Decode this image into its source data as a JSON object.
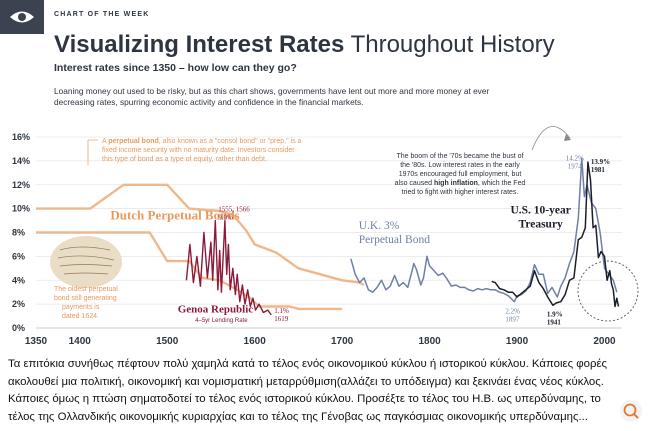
{
  "header": {
    "kicker": "CHART OF THE WEEK",
    "title_bold": "Visualizing Interest Rates",
    "title_light": "Throughout History",
    "subtitle": "Interest rates since 1350 – how low can they go?",
    "description": "Loaning money out used to be risky, but as this chart shows, governments have lent out more and more money at ever decreasing rates, spurring economic activity and confidence in the financial markets."
  },
  "annotations": {
    "perpetual_note_lead": "A ",
    "perpetual_note_bold": "perpetual bond",
    "perpetual_note_1": ", also known as a \"consol bond\" or \"prep,\" is a",
    "perpetual_note_2": "fixed income security with no maturity date. Investors consider",
    "perpetual_note_3": "this type of bond as a type of equity, rather than debt.",
    "oldest_1": "The oldest perpetual",
    "oldest_2": "bond still generating",
    "oldest_3": "payments is",
    "oldest_4": "dated 1624.",
    "boom_1": "The boom of the '70s became the bust of",
    "boom_2": "the '80s. Low interest rates in the early",
    "boom_3": "1970s encouraged full employment, but",
    "boom_4_a": "also caused ",
    "boom_4_b": "high inflation",
    "boom_4_c": ", which the Fed",
    "boom_5": "tried to fight with higher interest rates."
  },
  "caption": "Τα επιτόκια συνήθως πέφτουν πολύ χαμηλά κατά το τέλος ενός οικονομικού κύκλου ή  ιστορικού κύκλου. Κάποιες φορές ακολουθεί μια πολιτική, οικονομική και νομισματική μεταρρύθμιση(αλλάζει το υπόδειγμα) και ξεκινάει ένας νέος κύκλος. Κάποιες όμως η πτώση σηματοδοτεί το τέλος ενός ιστορικού κύκλου. Προσέξτε το τέλος του Η.Β. ως υπερδύναμης, το τέλος της Ολλανδικής οικονομικής κυριαρχίας  και το τέλος της Γένοβας ως παγκόσμιας οικονομικής υπερδύναμης...",
  "colors": {
    "dark": "#2d3540",
    "genoa": "#8b1a3a",
    "dutch": "#f0b78a",
    "dutch_text": "#e89a5e",
    "uk": "#6e7fa8",
    "us": "#1a1f28",
    "grid": "#e6e6e6"
  },
  "chart_data": {
    "type": "line",
    "title": "Visualizing Interest Rates Throughout History",
    "xlabel": "",
    "ylabel": "",
    "xlim": [
      1350,
      2020
    ],
    "ylim": [
      0,
      16
    ],
    "x_ticks": [
      1350,
      1400,
      1500,
      1600,
      1700,
      1800,
      1900,
      2000
    ],
    "y_ticks": [
      0,
      2,
      4,
      6,
      8,
      10,
      12,
      14,
      16
    ],
    "y_tick_labels": [
      "0%",
      "2%",
      "4%",
      "6%",
      "8%",
      "10%",
      "12%",
      "14%",
      "16%"
    ],
    "grid": true,
    "series": [
      {
        "name": "Dutch Perpetual Bonds",
        "label": "Dutch Perpetual Bonds",
        "points": [
          [
            1350,
            10.0
          ],
          [
            1360,
            10.0
          ],
          [
            1412,
            10.0
          ],
          [
            1450,
            12.0
          ],
          [
            1500,
            12.0
          ],
          [
            1525,
            10.0
          ],
          [
            1560,
            9.8
          ],
          [
            1575,
            9.5
          ],
          [
            1590,
            8.2
          ],
          [
            1600,
            7.0
          ],
          [
            1625,
            6.3
          ],
          [
            1650,
            5.0
          ],
          [
            1675,
            4.5
          ],
          [
            1700,
            4.0
          ],
          [
            1720,
            3.8
          ],
          [
            1725,
            3.6
          ]
        ]
      },
      {
        "name": "Dutch Perpetual Bonds (lower)",
        "label": "",
        "points": [
          [
            1350,
            8.0
          ],
          [
            1440,
            8.0
          ],
          [
            1480,
            8.0
          ],
          [
            1500,
            5.6
          ],
          [
            1525,
            5.6
          ],
          [
            1540,
            4.2
          ],
          [
            1560,
            4.0
          ],
          [
            1580,
            3.2
          ],
          [
            1595,
            2.5
          ],
          [
            1605,
            1.8
          ],
          [
            1640,
            1.8
          ],
          [
            1650,
            1.6
          ],
          [
            1700,
            1.6
          ]
        ]
      },
      {
        "name": "Genoa Republic",
        "label": "Genoa Republic",
        "sublabel": "4–5yr Lending Rate",
        "points": [
          [
            1522,
            4.0
          ],
          [
            1526,
            7.0
          ],
          [
            1530,
            3.8
          ],
          [
            1534,
            6.0
          ],
          [
            1538,
            3.5
          ],
          [
            1542,
            8.0
          ],
          [
            1546,
            4.2
          ],
          [
            1550,
            7.2
          ],
          [
            1552,
            4.0
          ],
          [
            1555,
            9.0
          ],
          [
            1558,
            3.2
          ],
          [
            1560,
            6.5
          ],
          [
            1562,
            3.0
          ],
          [
            1566,
            9.0
          ],
          [
            1568,
            4.5
          ],
          [
            1570,
            7.0
          ],
          [
            1572,
            3.2
          ],
          [
            1575,
            5.0
          ],
          [
            1578,
            2.8
          ],
          [
            1580,
            4.5
          ],
          [
            1583,
            2.2
          ],
          [
            1586,
            3.6
          ],
          [
            1589,
            2.0
          ],
          [
            1592,
            3.2
          ],
          [
            1595,
            1.8
          ],
          [
            1598,
            2.5
          ],
          [
            1601,
            1.5
          ],
          [
            1605,
            2.0
          ],
          [
            1610,
            1.3
          ],
          [
            1615,
            1.5
          ],
          [
            1619,
            1.1
          ]
        ]
      },
      {
        "name": "U.K. 3% Perpetual Bond",
        "label": "U.K. 3% Perpetual Bond",
        "points": [
          [
            1710,
            5.8
          ],
          [
            1715,
            4.5
          ],
          [
            1720,
            3.8
          ],
          [
            1725,
            4.2
          ],
          [
            1730,
            3.2
          ],
          [
            1735,
            3.0
          ],
          [
            1740,
            3.4
          ],
          [
            1745,
            4.0
          ],
          [
            1750,
            3.2
          ],
          [
            1755,
            3.5
          ],
          [
            1760,
            4.4
          ],
          [
            1765,
            3.5
          ],
          [
            1770,
            3.8
          ],
          [
            1775,
            3.4
          ],
          [
            1780,
            4.8
          ],
          [
            1782,
            5.4
          ],
          [
            1785,
            4.9
          ],
          [
            1790,
            3.6
          ],
          [
            1793,
            4.2
          ],
          [
            1797,
            6.0
          ],
          [
            1800,
            5.2
          ],
          [
            1805,
            4.8
          ],
          [
            1810,
            4.4
          ],
          [
            1815,
            4.6
          ],
          [
            1820,
            4.1
          ],
          [
            1825,
            3.5
          ],
          [
            1830,
            3.6
          ],
          [
            1835,
            3.4
          ],
          [
            1840,
            3.4
          ],
          [
            1845,
            3.2
          ],
          [
            1850,
            3.1
          ],
          [
            1855,
            3.3
          ],
          [
            1860,
            3.2
          ],
          [
            1865,
            3.3
          ],
          [
            1870,
            3.2
          ],
          [
            1875,
            3.2
          ],
          [
            1880,
            3.0
          ],
          [
            1885,
            2.9
          ],
          [
            1890,
            2.7
          ],
          [
            1897,
            2.2
          ],
          [
            1900,
            2.7
          ],
          [
            1905,
            2.8
          ],
          [
            1910,
            3.1
          ],
          [
            1915,
            3.8
          ],
          [
            1920,
            5.3
          ],
          [
            1925,
            4.5
          ],
          [
            1930,
            4.5
          ],
          [
            1935,
            2.9
          ],
          [
            1940,
            3.4
          ],
          [
            1946,
            2.6
          ],
          [
            1950,
            3.5
          ],
          [
            1955,
            4.2
          ],
          [
            1960,
            5.4
          ],
          [
            1965,
            6.4
          ],
          [
            1970,
            9.2
          ],
          [
            1974,
            14.2
          ],
          [
            1977,
            11.0
          ],
          [
            1980,
            12.0
          ],
          [
            1985,
            10.5
          ],
          [
            1990,
            10.0
          ],
          [
            1995,
            8.0
          ],
          [
            2000,
            5.0
          ],
          [
            2005,
            4.5
          ],
          [
            2010,
            4.0
          ],
          [
            2014,
            3.0
          ]
        ]
      },
      {
        "name": "U.S. 10-year Treasury",
        "label": "U.S. 10-year Treasury",
        "points": [
          [
            1871,
            3.9
          ],
          [
            1875,
            3.8
          ],
          [
            1880,
            3.3
          ],
          [
            1885,
            3.2
          ],
          [
            1890,
            3.0
          ],
          [
            1895,
            3.0
          ],
          [
            1900,
            2.6
          ],
          [
            1905,
            2.9
          ],
          [
            1910,
            3.2
          ],
          [
            1915,
            3.5
          ],
          [
            1920,
            4.8
          ],
          [
            1925,
            3.8
          ],
          [
            1930,
            3.3
          ],
          [
            1935,
            2.6
          ],
          [
            1941,
            1.9
          ],
          [
            1945,
            2.1
          ],
          [
            1950,
            2.2
          ],
          [
            1955,
            2.8
          ],
          [
            1960,
            4.0
          ],
          [
            1965,
            4.2
          ],
          [
            1970,
            7.4
          ],
          [
            1974,
            7.6
          ],
          [
            1978,
            8.4
          ],
          [
            1981,
            13.9
          ],
          [
            1984,
            12.4
          ],
          [
            1987,
            8.4
          ],
          [
            1990,
            8.6
          ],
          [
            1993,
            5.9
          ],
          [
            1996,
            6.4
          ],
          [
            2000,
            6.0
          ],
          [
            2003,
            4.0
          ],
          [
            2006,
            4.8
          ],
          [
            2008,
            3.7
          ],
          [
            2010,
            3.2
          ],
          [
            2012,
            1.8
          ],
          [
            2014,
            2.5
          ],
          [
            2016,
            1.8
          ]
        ]
      }
    ],
    "point_labels": [
      {
        "text": "1555, 1566",
        "x": 1555,
        "y": 9.0,
        "value": "9.0%"
      },
      {
        "text": "1.1%",
        "x": 1619,
        "y": 1.1,
        "year": "1619"
      },
      {
        "text": "2.2%",
        "x": 1897,
        "y": 2.2,
        "year": "1897"
      },
      {
        "text": "1.9%",
        "x": 1941,
        "y": 1.9,
        "year": "1941"
      },
      {
        "text": "14.2%",
        "x": 1974,
        "y": 14.2,
        "year": "1974"
      },
      {
        "text": "13.9%",
        "x": 1981,
        "y": 13.9,
        "year": "1981"
      }
    ]
  }
}
